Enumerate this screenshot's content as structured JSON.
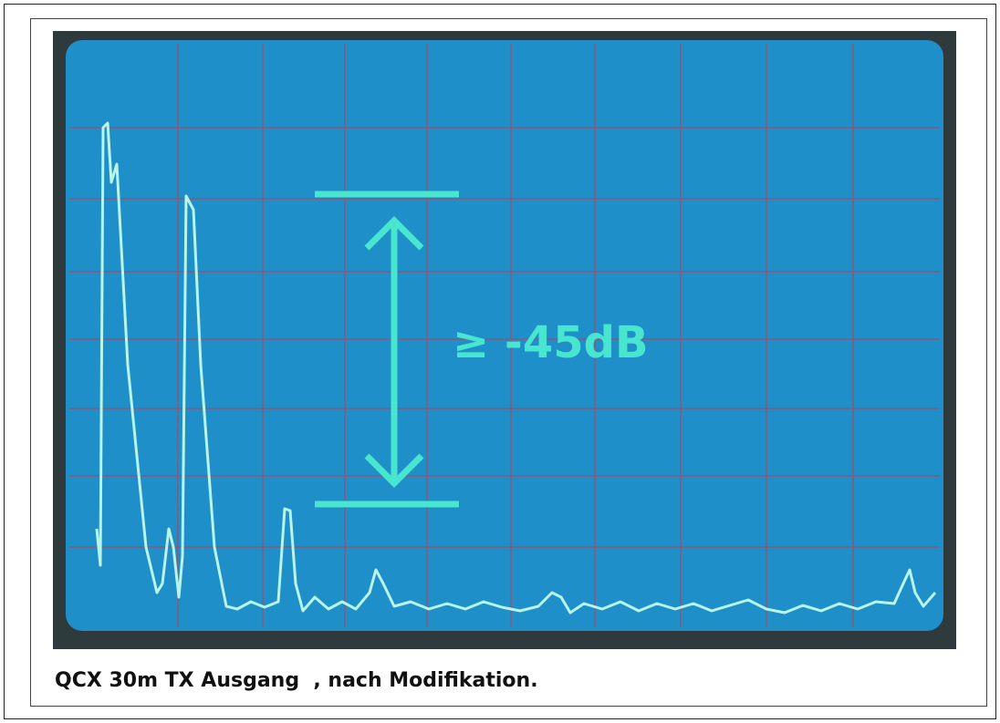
{
  "annotation": {
    "label": "≥ -45dB"
  },
  "caption": "QCX 30m TX Ausgang  , nach Modifikation."
}
